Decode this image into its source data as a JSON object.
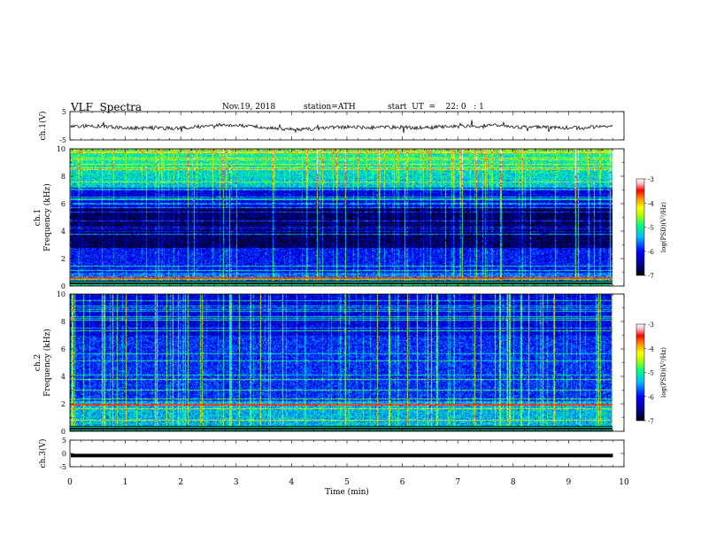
{
  "header": {
    "title": "VLF  Spectra",
    "date": "Nov.19, 2018",
    "station": "station=ATH",
    "start": "start  UT  =    22: 0   : 1"
  },
  "chart_data": [
    {
      "type": "line",
      "name": "ch1-waveform",
      "ylabel": "ch.1(V)",
      "ylim": [
        -5,
        5
      ],
      "yticks": [
        "5",
        "-5"
      ],
      "xlim": [
        0,
        10
      ]
    },
    {
      "type": "heatmap",
      "name": "ch1-spectrogram",
      "ylabel": "ch.1\nFrequency (kHz)",
      "ylabel_lines": [
        "ch.1",
        "Frequency (kHz)"
      ],
      "ylim": [
        0,
        10
      ],
      "yticks": [
        "0",
        "2",
        "4",
        "6",
        "8",
        "10"
      ],
      "xlim": [
        0,
        10
      ],
      "data_end_min": 9.8,
      "colorbar": {
        "label": "log(PSD)(V²/Hz)",
        "range": [
          -7,
          -3
        ],
        "ticks": [
          "-3",
          "-4",
          "-5",
          "-6",
          "-7"
        ]
      }
    },
    {
      "type": "heatmap",
      "name": "ch2-spectrogram",
      "ylabel": "ch.2\nFrequency (kHz)",
      "ylabel_lines": [
        "ch.2",
        "Frequency (kHz)"
      ],
      "ylim": [
        0,
        10
      ],
      "yticks": [
        "0",
        "2",
        "4",
        "6",
        "8",
        "10"
      ],
      "xlim": [
        0,
        10
      ],
      "data_end_min": 9.8,
      "colorbar": {
        "label": "log(PSD)(V²/Hz)",
        "range": [
          -7,
          -3
        ],
        "ticks": [
          "-3",
          "-4",
          "-5",
          "-6",
          "-7"
        ]
      }
    },
    {
      "type": "line",
      "name": "ch3-waveform",
      "ylabel": "ch.3(V)",
      "ylim": [
        -5,
        5
      ],
      "yticks": [
        "5",
        "0",
        "-5"
      ],
      "xlim": [
        0,
        10
      ],
      "xlabel": "Time  (min)",
      "xticks": [
        "0",
        "1",
        "2",
        "3",
        "4",
        "5",
        "6",
        "7",
        "8",
        "9",
        "10"
      ],
      "level_v": -0.8
    }
  ],
  "colors": {
    "axis": "#000000",
    "trace": "#111111",
    "colormap": [
      "#000000",
      "#00008b",
      "#0000ff",
      "#00bfff",
      "#00ff7f",
      "#aaff00",
      "#ffff00",
      "#ff8c00",
      "#ff0000",
      "#ffb6c1",
      "#ffffff"
    ]
  }
}
